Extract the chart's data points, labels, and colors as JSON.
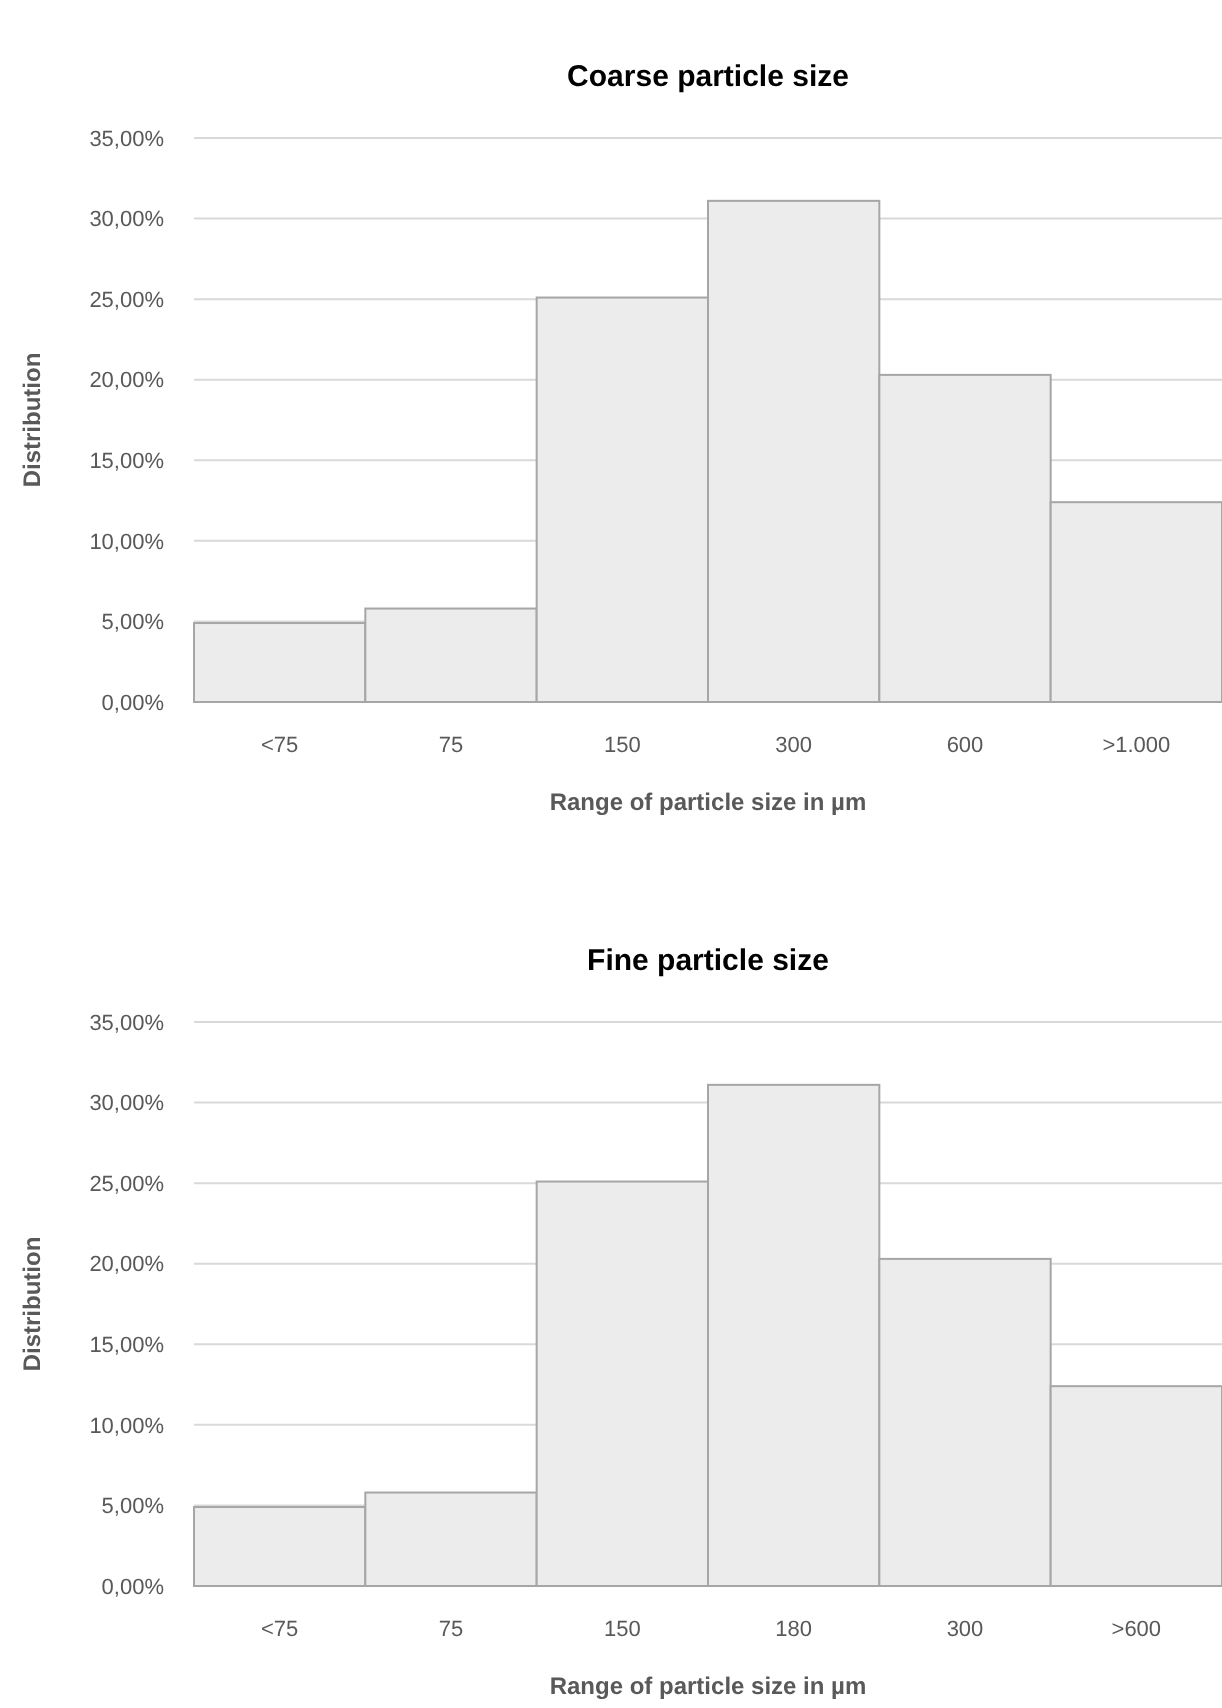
{
  "chart_data": [
    {
      "type": "bar",
      "title": "Coarse particle size",
      "xlabel": "Range of particle size in µm",
      "ylabel": "Distribution",
      "categories": [
        "<75",
        "75",
        "150",
        "300",
        "600",
        ">1.000"
      ],
      "values": [
        4.9,
        5.8,
        25.1,
        31.1,
        20.3,
        12.4
      ],
      "color": "#ececec",
      "ylim": [
        0,
        35
      ],
      "yticks": [
        {
          "value": 0,
          "label": "0,00%"
        },
        {
          "value": 5,
          "label": "5,00%"
        },
        {
          "value": 10,
          "label": "10,00%"
        },
        {
          "value": 15,
          "label": "15,00%"
        },
        {
          "value": 20,
          "label": "20,00%"
        },
        {
          "value": 25,
          "label": "25,00%"
        },
        {
          "value": 30,
          "label": "30,00%"
        },
        {
          "value": 35,
          "label": "35,00%"
        }
      ],
      "grid": "y"
    },
    {
      "type": "bar",
      "title": "Fine particle size",
      "xlabel": "Range of particle size in µm",
      "ylabel": "Distribution",
      "categories": [
        "<75",
        "75",
        "150",
        "180",
        "300",
        ">600"
      ],
      "values": [
        4.9,
        5.8,
        25.1,
        31.1,
        20.3,
        12.4
      ],
      "color": "#ececec",
      "ylim": [
        0,
        35
      ],
      "yticks": [
        {
          "value": 0,
          "label": "0,00%"
        },
        {
          "value": 5,
          "label": "5,00%"
        },
        {
          "value": 10,
          "label": "10,00%"
        },
        {
          "value": 15,
          "label": "15,00%"
        },
        {
          "value": 20,
          "label": "20,00%"
        },
        {
          "value": 25,
          "label": "25,00%"
        },
        {
          "value": 30,
          "label": "30,00%"
        },
        {
          "value": 35,
          "label": "35,00%"
        }
      ],
      "grid": "y"
    }
  ]
}
